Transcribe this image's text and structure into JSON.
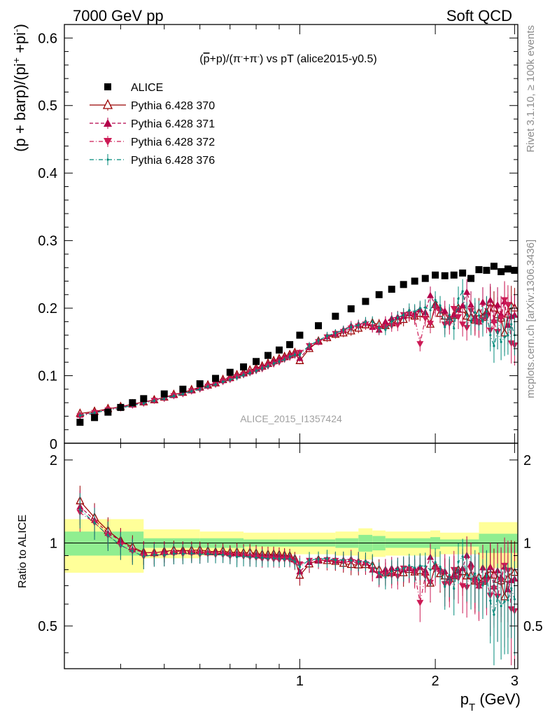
{
  "header": {
    "left": "7000 GeV pp",
    "right": "Soft QCD"
  },
  "side_labels": {
    "rivet": "Rivet 3.1.10, ≥ 100k events",
    "mcplots": "mcplots.cern.ch [arXiv:1306.3436]"
  },
  "watermark": "ALICE_2015_I1357424",
  "chart_data": [
    {
      "type": "scatter",
      "panel": "main",
      "title": "(p̅+p)/(π⁻+π⁺) vs pT (alice2015-y0.5)",
      "title_display": [
        "(",
        "p",
        "+p)/(",
        "π",
        "-",
        "+",
        "π",
        "-",
        ") vs pT (alice2015-y0.5)"
      ],
      "ylabel": "(p + barp)/(pi⁺ +pi⁻)",
      "ylabel_display": {
        "pre": "(p + barp)/(pi",
        "sup1": "+",
        "mid": " +pi",
        "sup2": "-",
        "post": ")"
      },
      "xlabel": "",
      "xlim": [
        0.3,
        3.05
      ],
      "ylim": [
        0,
        0.62
      ],
      "x_log": true,
      "yticks": [
        {
          "value": 0.1,
          "label": "0.1"
        },
        {
          "value": 0.2,
          "label": "0.2"
        },
        {
          "value": 0.3,
          "label": "0.3"
        },
        {
          "value": 0.4,
          "label": "0.4"
        },
        {
          "value": 0.5,
          "label": "0.5"
        },
        {
          "value": 0.6,
          "label": "0.6"
        }
      ],
      "y_zero_label": "0",
      "legend_position": "top-left",
      "x": [
        0.325,
        0.35,
        0.375,
        0.4,
        0.425,
        0.45,
        0.475,
        0.5,
        0.525,
        0.55,
        0.575,
        0.6,
        0.625,
        0.65,
        0.675,
        0.7,
        0.725,
        0.75,
        0.775,
        0.8,
        0.825,
        0.85,
        0.875,
        0.9,
        0.925,
        0.95,
        0.975,
        1.0,
        1.05,
        1.1,
        1.15,
        1.2,
        1.25,
        1.3,
        1.35,
        1.4,
        1.45,
        1.5,
        1.55,
        1.6,
        1.65,
        1.7,
        1.75,
        1.8,
        1.85,
        1.9,
        1.95,
        2.0,
        2.05,
        2.1,
        2.15,
        2.2,
        2.25,
        2.3,
        2.35,
        2.4,
        2.45,
        2.5,
        2.55,
        2.6,
        2.65,
        2.7,
        2.75,
        2.8,
        2.85,
        2.9,
        2.95,
        3.0
      ],
      "series": [
        {
          "name": "ALICE",
          "style": "data",
          "color": "#000000",
          "xcoords": [
            0.325,
            0.35,
            0.375,
            0.4,
            0.425,
            0.45,
            0.5,
            0.55,
            0.6,
            0.65,
            0.7,
            0.75,
            0.8,
            0.85,
            0.9,
            0.95,
            1.0,
            1.1,
            1.2,
            1.3,
            1.4,
            1.5,
            1.6,
            1.7,
            1.8,
            1.9,
            2.0,
            2.1,
            2.2,
            2.3,
            2.4,
            2.5,
            2.6,
            2.7,
            2.8,
            2.9,
            3.0
          ],
          "values": [
            0.031,
            0.038,
            0.046,
            0.053,
            0.06,
            0.066,
            0.073,
            0.08,
            0.088,
            0.096,
            0.105,
            0.113,
            0.121,
            0.13,
            0.138,
            0.146,
            0.16,
            0.174,
            0.188,
            0.199,
            0.21,
            0.22,
            0.228,
            0.235,
            0.24,
            0.244,
            0.249,
            0.248,
            0.249,
            0.252,
            0.244,
            0.257,
            0.256,
            0.262,
            0.254,
            0.258,
            0.256
          ]
        },
        {
          "name": "Pythia 6.428 370",
          "style": "solid-open-triangle",
          "color": "#990000",
          "values": [
            0.044,
            0.047,
            0.051,
            0.054,
            0.058,
            0.061,
            0.064,
            0.068,
            0.072,
            0.075,
            0.079,
            0.083,
            0.086,
            0.089,
            0.094,
            0.097,
            0.101,
            0.104,
            0.108,
            0.111,
            0.114,
            0.118,
            0.122,
            0.125,
            0.128,
            0.131,
            0.134,
            0.122,
            0.14,
            0.151,
            0.156,
            0.161,
            0.163,
            0.166,
            0.17,
            0.175,
            0.178,
            0.176,
            0.174,
            0.178,
            0.181,
            0.183,
            0.19,
            0.188,
            0.192,
            0.191,
            0.176,
            0.205,
            0.192,
            0.188,
            0.184,
            0.189,
            0.2,
            0.198,
            0.188,
            0.186,
            0.182,
            0.193,
            0.186,
            0.194,
            0.208,
            0.2,
            0.19,
            0.185,
            0.163,
            0.191,
            0.203,
            0.2
          ],
          "err": [
            0.003,
            0.003,
            0.003,
            0.003,
            0.003,
            0.003,
            0.003,
            0.003,
            0.003,
            0.003,
            0.003,
            0.003,
            0.003,
            0.003,
            0.003,
            0.003,
            0.004,
            0.004,
            0.004,
            0.004,
            0.004,
            0.004,
            0.004,
            0.004,
            0.004,
            0.004,
            0.004,
            0.005,
            0.005,
            0.005,
            0.006,
            0.006,
            0.006,
            0.007,
            0.007,
            0.007,
            0.008,
            0.008,
            0.008,
            0.009,
            0.009,
            0.01,
            0.01,
            0.011,
            0.011,
            0.012,
            0.013,
            0.013,
            0.014,
            0.015,
            0.016,
            0.017,
            0.018,
            0.018,
            0.019,
            0.02,
            0.021,
            0.022,
            0.022,
            0.023,
            0.024,
            0.025,
            0.026,
            0.027,
            0.028,
            0.029,
            0.03,
            0.03
          ]
        },
        {
          "name": "Pythia 6.428 371",
          "style": "dashed-filled-triangle",
          "color": "#b4004a",
          "values": [
            0.042,
            0.046,
            0.05,
            0.054,
            0.057,
            0.061,
            0.064,
            0.068,
            0.071,
            0.075,
            0.078,
            0.082,
            0.085,
            0.089,
            0.093,
            0.096,
            0.1,
            0.103,
            0.106,
            0.11,
            0.113,
            0.117,
            0.121,
            0.124,
            0.127,
            0.13,
            0.133,
            0.126,
            0.142,
            0.15,
            0.158,
            0.162,
            0.168,
            0.174,
            0.176,
            0.179,
            0.172,
            0.168,
            0.18,
            0.185,
            0.187,
            0.188,
            0.192,
            0.193,
            0.198,
            0.194,
            0.219,
            0.205,
            0.2,
            0.196,
            0.186,
            0.19,
            0.198,
            0.204,
            0.224,
            0.205,
            0.187,
            0.18,
            0.209,
            0.193,
            0.212,
            0.182,
            0.205,
            0.191,
            0.21,
            0.175,
            0.188,
            0.19
          ],
          "err": [
            0.003,
            0.003,
            0.003,
            0.003,
            0.003,
            0.003,
            0.003,
            0.003,
            0.003,
            0.003,
            0.003,
            0.003,
            0.003,
            0.003,
            0.003,
            0.003,
            0.004,
            0.004,
            0.004,
            0.004,
            0.004,
            0.004,
            0.004,
            0.004,
            0.004,
            0.004,
            0.004,
            0.005,
            0.005,
            0.005,
            0.006,
            0.006,
            0.006,
            0.007,
            0.007,
            0.007,
            0.008,
            0.008,
            0.008,
            0.009,
            0.009,
            0.01,
            0.01,
            0.011,
            0.011,
            0.012,
            0.013,
            0.013,
            0.014,
            0.015,
            0.016,
            0.017,
            0.018,
            0.018,
            0.019,
            0.02,
            0.021,
            0.022,
            0.022,
            0.023,
            0.024,
            0.025,
            0.026,
            0.027,
            0.028,
            0.029,
            0.03,
            0.03
          ]
        },
        {
          "name": "Pythia 6.428 372",
          "style": "dashdot-filled-invtriangle",
          "color": "#cc1a55",
          "values": [
            0.04,
            0.045,
            0.049,
            0.052,
            0.056,
            0.059,
            0.063,
            0.066,
            0.07,
            0.073,
            0.077,
            0.08,
            0.084,
            0.087,
            0.091,
            0.094,
            0.098,
            0.101,
            0.104,
            0.107,
            0.11,
            0.114,
            0.117,
            0.12,
            0.124,
            0.127,
            0.13,
            0.134,
            0.144,
            0.15,
            0.157,
            0.162,
            0.165,
            0.17,
            0.173,
            0.176,
            0.172,
            0.17,
            0.172,
            0.174,
            0.175,
            0.19,
            0.191,
            0.186,
            0.147,
            0.185,
            0.177,
            0.2,
            0.195,
            0.176,
            0.177,
            0.199,
            0.187,
            0.176,
            0.171,
            0.196,
            0.18,
            0.178,
            0.183,
            0.186,
            0.167,
            0.179,
            0.165,
            0.185,
            0.212,
            0.205,
            0.148,
            0.145
          ],
          "err": [
            0.003,
            0.003,
            0.003,
            0.003,
            0.003,
            0.003,
            0.003,
            0.003,
            0.003,
            0.003,
            0.003,
            0.003,
            0.003,
            0.003,
            0.003,
            0.003,
            0.004,
            0.004,
            0.004,
            0.004,
            0.004,
            0.004,
            0.004,
            0.004,
            0.004,
            0.004,
            0.004,
            0.005,
            0.005,
            0.005,
            0.006,
            0.006,
            0.006,
            0.007,
            0.007,
            0.007,
            0.008,
            0.008,
            0.008,
            0.009,
            0.009,
            0.01,
            0.01,
            0.011,
            0.011,
            0.012,
            0.013,
            0.013,
            0.014,
            0.015,
            0.016,
            0.017,
            0.018,
            0.018,
            0.019,
            0.02,
            0.021,
            0.022,
            0.022,
            0.023,
            0.024,
            0.025,
            0.026,
            0.027,
            0.028,
            0.029,
            0.03,
            0.03
          ]
        },
        {
          "name": "Pythia 6.428 376",
          "style": "dashdot-small-dot",
          "color": "#008a7a",
          "values": [
            0.041,
            0.045,
            0.049,
            0.052,
            0.056,
            0.059,
            0.063,
            0.066,
            0.07,
            0.073,
            0.077,
            0.08,
            0.084,
            0.087,
            0.091,
            0.094,
            0.097,
            0.101,
            0.104,
            0.107,
            0.111,
            0.114,
            0.118,
            0.121,
            0.124,
            0.128,
            0.131,
            0.131,
            0.145,
            0.152,
            0.159,
            0.163,
            0.168,
            0.172,
            0.175,
            0.18,
            0.18,
            0.171,
            0.168,
            0.18,
            0.186,
            0.19,
            0.197,
            0.195,
            0.2,
            0.201,
            0.197,
            0.212,
            0.204,
            0.172,
            0.19,
            0.17,
            0.214,
            0.225,
            0.19,
            0.18,
            0.194,
            0.189,
            0.18,
            0.195,
            0.16,
            0.144,
            0.165,
            0.15,
            0.157,
            0.16,
            0.176,
            0.16
          ],
          "err": [
            0.003,
            0.003,
            0.003,
            0.003,
            0.003,
            0.003,
            0.003,
            0.003,
            0.003,
            0.003,
            0.003,
            0.003,
            0.003,
            0.003,
            0.003,
            0.003,
            0.004,
            0.004,
            0.004,
            0.004,
            0.004,
            0.004,
            0.004,
            0.004,
            0.004,
            0.004,
            0.004,
            0.005,
            0.005,
            0.005,
            0.006,
            0.006,
            0.006,
            0.007,
            0.007,
            0.007,
            0.008,
            0.008,
            0.008,
            0.009,
            0.009,
            0.01,
            0.01,
            0.011,
            0.011,
            0.012,
            0.013,
            0.013,
            0.014,
            0.015,
            0.016,
            0.017,
            0.018,
            0.018,
            0.019,
            0.02,
            0.021,
            0.022,
            0.022,
            0.023,
            0.024,
            0.025,
            0.026,
            0.027,
            0.028,
            0.029,
            0.03,
            0.03
          ]
        }
      ]
    },
    {
      "type": "scatter",
      "panel": "ratio",
      "ylabel": "Ratio to ALICE",
      "xlabel": "p_T (GeV)",
      "xlabel_display": {
        "main": "p",
        "sub": "T",
        "unit": " (GeV)"
      },
      "xlim": [
        0.3,
        3.05
      ],
      "ylim": [
        0.35,
        2.3
      ],
      "y_log": true,
      "x_log": true,
      "yticks": [
        {
          "value": 0.5,
          "label": "0.5"
        },
        {
          "value": 1,
          "label": "1"
        },
        {
          "value": 2,
          "label": "2"
        }
      ],
      "xticks": [
        {
          "value": 1,
          "label": "1"
        },
        {
          "value": 2,
          "label": "2"
        },
        {
          "value": 3,
          "label": "3"
        }
      ],
      "uncertainty_bands": {
        "stat_color": "#90ee90",
        "syst_color": "#ffff99",
        "x_edges": [
          0.3,
          0.45,
          0.6,
          0.75,
          0.9,
          1.2,
          1.35,
          1.45,
          1.55,
          1.95,
          2.05,
          2.5,
          3.05
        ],
        "stat_half_width": [
          0.1,
          0.04,
          0.04,
          0.03,
          0.03,
          0.04,
          0.07,
          0.06,
          0.04,
          0.05,
          0.03,
          0.08
        ],
        "total_half_width": [
          0.22,
          0.12,
          0.1,
          0.09,
          0.09,
          0.1,
          0.13,
          0.11,
          0.1,
          0.11,
          0.09,
          0.19
        ]
      }
    }
  ]
}
